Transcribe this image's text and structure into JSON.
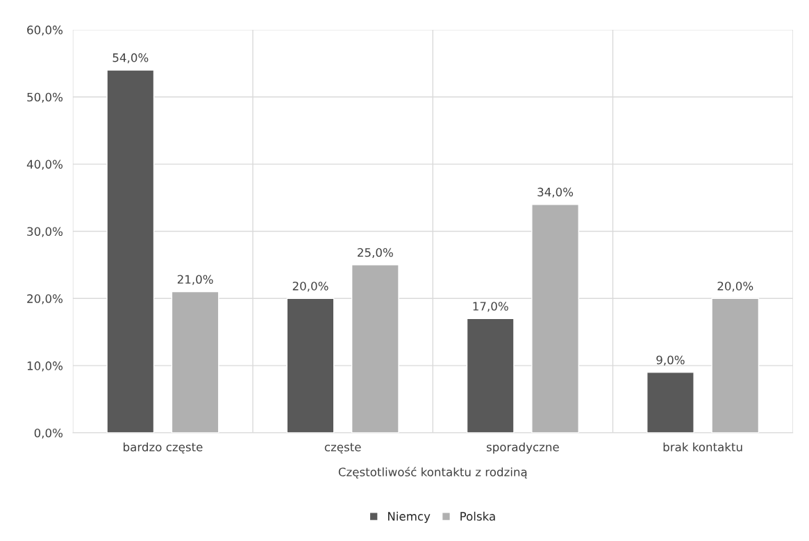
{
  "chart_data": {
    "type": "bar",
    "xlabel": "Częstotliwość kontaktu z rodziną",
    "categories": [
      "bardzo częste",
      "częste",
      "sporadyczne",
      "brak kontaktu"
    ],
    "series": [
      {
        "name": "Niemcy",
        "color": "#595959",
        "values": [
          54,
          20,
          17,
          9
        ],
        "value_labels": [
          "54,0%",
          "20,0%",
          "17,0%",
          "9,0%"
        ]
      },
      {
        "name": "Polska",
        "color": "#b0b0b0",
        "values": [
          21,
          25,
          34,
          20
        ],
        "value_labels": [
          "21,0%",
          "25,0%",
          "34,0%",
          "20,0%"
        ]
      }
    ],
    "ylim": [
      0,
      60
    ],
    "yticks": [
      {
        "value": 0,
        "label": "0,0%"
      },
      {
        "value": 10,
        "label": "10,0%"
      },
      {
        "value": 20,
        "label": "20,0%"
      },
      {
        "value": 30,
        "label": "30,0%"
      },
      {
        "value": 40,
        "label": "40,0%"
      },
      {
        "value": 50,
        "label": "50,0%"
      },
      {
        "value": 60,
        "label": "60,0%"
      }
    ],
    "grid": true,
    "legend": "bottom"
  }
}
